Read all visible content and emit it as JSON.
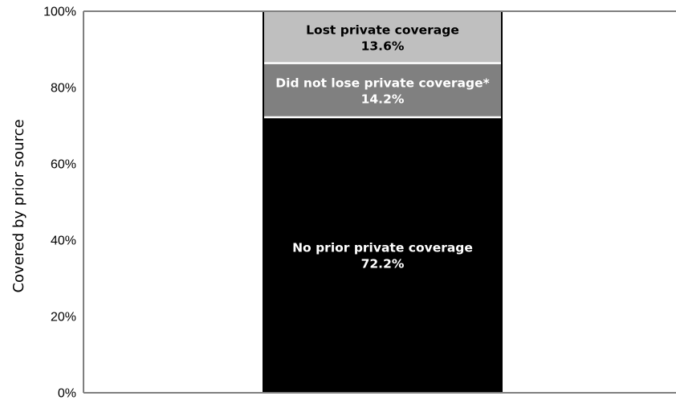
{
  "chart_data": {
    "type": "bar",
    "stacked": true,
    "ylabel": "Covered by prior source",
    "xlabel": "",
    "ylim": [
      0,
      100
    ],
    "yticks": [
      "0%",
      "20%",
      "40%",
      "60%",
      "80%",
      "100%"
    ],
    "ytick_values": [
      0,
      20,
      40,
      60,
      80,
      100
    ],
    "grid": false,
    "segments": [
      {
        "name": "No prior private coverage",
        "value": 72.2,
        "value_label": "72.2%",
        "color": "#000000",
        "text_color": "#ffffff"
      },
      {
        "name": "Did not lose private coverage*",
        "value": 14.2,
        "value_label": "14.2%",
        "color": "#808080",
        "text_color": "#ffffff"
      },
      {
        "name": "Lost private coverage",
        "value": 13.6,
        "value_label": "13.6%",
        "color": "#bfbfbf",
        "text_color": "#000000"
      }
    ]
  }
}
